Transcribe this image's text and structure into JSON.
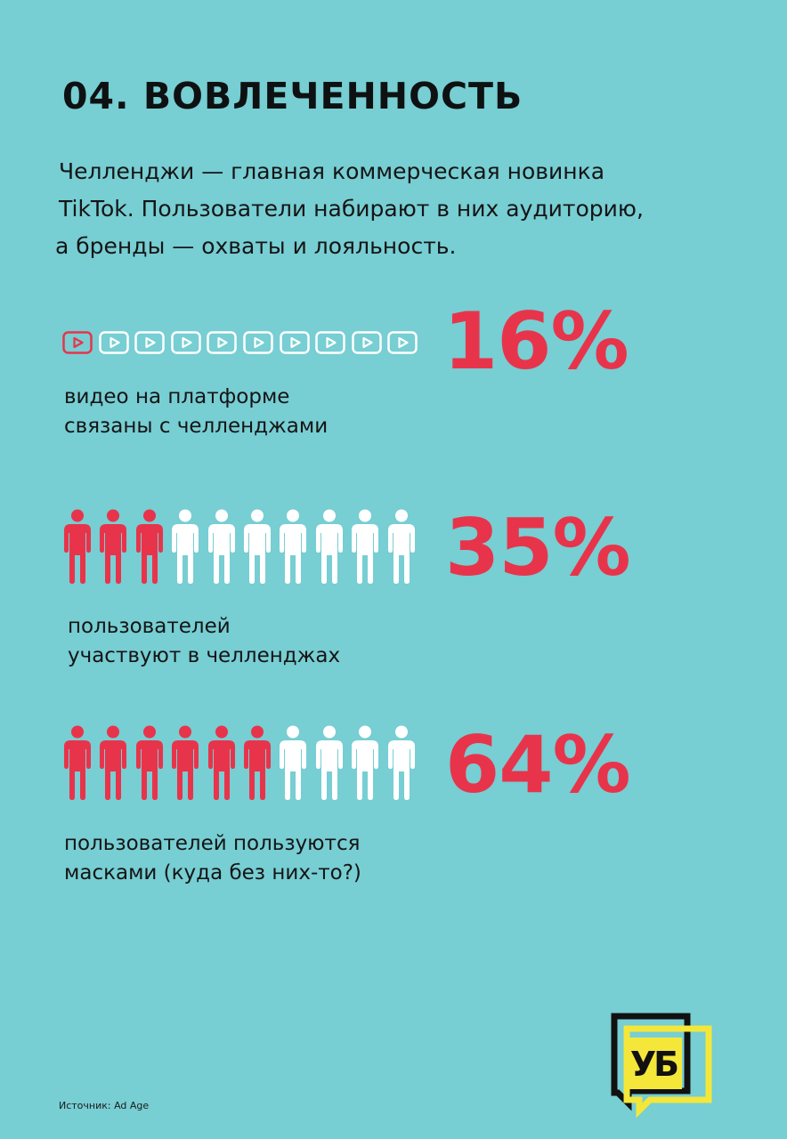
{
  "title": "04. ВОВЛЕЧЕННОСТЬ",
  "intro": [
    "Челленджи — главная коммерческая новинка",
    "TikTok. Пользователи набирают в них аудиторию,",
    " а бренды — охваты и лояльность."
  ],
  "stats": [
    {
      "icon": "play-button-icon",
      "value": 16,
      "percent_label": "16%",
      "highlighted": 1,
      "total": 10,
      "caption": [
        "видео на платформе",
        "связаны с челленджами"
      ]
    },
    {
      "icon": "person-icon",
      "value": 35,
      "percent_label": "35%",
      "highlighted": 3,
      "total": 10,
      "caption": [
        "пользователей",
        "участвуют в челленджах"
      ]
    },
    {
      "icon": "person-icon",
      "value": 64,
      "percent_label": "64%",
      "highlighted": 6,
      "total": 10,
      "caption": [
        "пользователей пользуются",
        "масками (куда без них-то?)"
      ]
    }
  ],
  "source": "Источник: Ad Age",
  "logo": {
    "text": "УБ",
    "icon": "speech-bubble-logo-icon"
  },
  "colors": {
    "background": "#77CED3",
    "accent": "#E8344B",
    "neutral_icon": "#FFFFFF",
    "logo_yellow": "#F4E73A"
  }
}
